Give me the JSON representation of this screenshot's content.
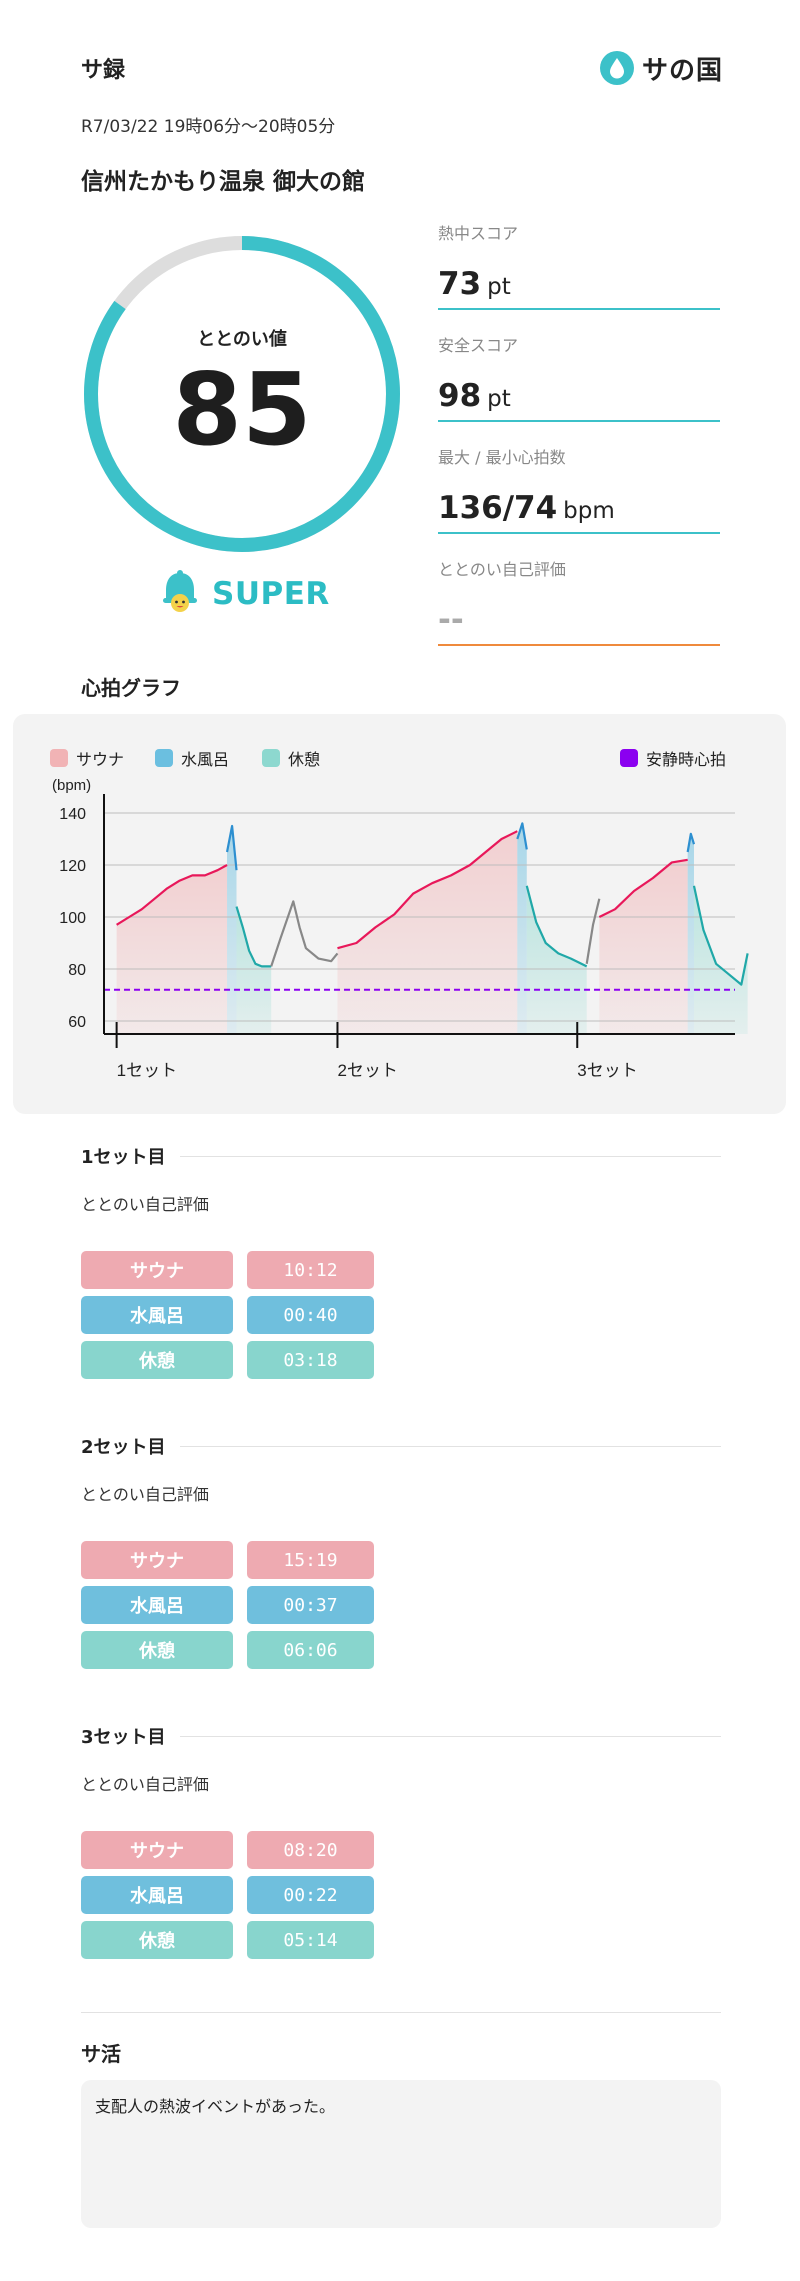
{
  "header": {
    "title": "サ録",
    "logo_text": "サの国",
    "logo_icon": "water-drop-icon",
    "datetime": "R7/03/22 19時06分〜20時05分",
    "facility": "信州たかもり温泉 御大の館"
  },
  "totonoi": {
    "label": "ととのい値",
    "value": "85",
    "max": 100,
    "level": "SUPER",
    "level_icon": "bell-mascot-icon",
    "ring_color": "#3cc1c9",
    "track_color": "#dddddd"
  },
  "scores": [
    {
      "label": "熱中スコア",
      "value": "73",
      "unit": "pt",
      "line_color": "#3cc1c9"
    },
    {
      "label": "安全スコア",
      "value": "98",
      "unit": "pt",
      "line_color": "#3cc1c9"
    },
    {
      "label": "最大 / 最小心拍数",
      "value": "136/74",
      "unit": "bpm",
      "line_color": "#3cc1c9"
    },
    {
      "label": "ととのい自己評価",
      "value": "--",
      "unit": "",
      "line_color": "#ef8a3c"
    }
  ],
  "chart_section_title": "心拍グラフ",
  "chart_data": {
    "type": "line",
    "ylabel": "(bpm)",
    "ylim": [
      55,
      145
    ],
    "yticks": [
      60,
      80,
      100,
      120,
      140
    ],
    "xlim": [
      0,
      100
    ],
    "x_ticks": [
      {
        "x": 2,
        "label": "1セット"
      },
      {
        "x": 37,
        "label": "2セット"
      },
      {
        "x": 75,
        "label": "3セット"
      }
    ],
    "legend": [
      {
        "name": "サウナ",
        "color": "#f1b3b5"
      },
      {
        "name": "水風呂",
        "color": "#6bbfe0"
      },
      {
        "name": "休憩",
        "color": "#8dd8cf"
      },
      {
        "name": "安静時心拍",
        "color": "#8b00f0"
      }
    ],
    "resting_hr": 72,
    "phases": [
      {
        "type": "サウナ",
        "start": 2,
        "end": 19.5
      },
      {
        "type": "水風呂",
        "start": 19.5,
        "end": 21
      },
      {
        "type": "休憩",
        "start": 21,
        "end": 26.5
      },
      {
        "type": "サウナ",
        "start": 37,
        "end": 65.5
      },
      {
        "type": "水風呂",
        "start": 65.5,
        "end": 67
      },
      {
        "type": "休憩",
        "start": 67,
        "end": 76.5
      },
      {
        "type": "サウナ",
        "start": 78.5,
        "end": 92.5
      },
      {
        "type": "水風呂",
        "start": 92.5,
        "end": 93.5
      },
      {
        "type": "休憩",
        "start": 93.5,
        "end": 102
      }
    ],
    "series": [
      {
        "segment": "サウナ",
        "color": "#e8185a",
        "x": [
          2,
          4,
          6,
          8,
          10,
          12,
          14,
          16,
          18,
          19.5
        ],
        "y": [
          97,
          100,
          103,
          107,
          111,
          114,
          116,
          116,
          118,
          120
        ]
      },
      {
        "segment": "水風呂",
        "color": "#2d8fd0",
        "x": [
          19.5,
          20.3,
          21
        ],
        "y": [
          125,
          135,
          118
        ]
      },
      {
        "segment": "休憩",
        "color": "#20a8a8",
        "x": [
          21,
          22,
          23,
          24,
          25,
          26.5
        ],
        "y": [
          104,
          96,
          87,
          82,
          81,
          81
        ]
      },
      {
        "segment": "移動",
        "color": "#888888",
        "x": [
          26.5,
          28,
          30,
          31,
          32,
          34,
          36,
          37
        ],
        "y": [
          81,
          92,
          106,
          96,
          88,
          84,
          83,
          86
        ]
      },
      {
        "segment": "サウナ",
        "color": "#e8185a",
        "x": [
          37,
          40,
          43,
          46,
          49,
          52,
          55,
          58,
          61,
          63,
          65.5
        ],
        "y": [
          88,
          90,
          96,
          101,
          109,
          113,
          116,
          120,
          126,
          130,
          133
        ]
      },
      {
        "segment": "水風呂",
        "color": "#2d8fd0",
        "x": [
          65.5,
          66.3,
          67
        ],
        "y": [
          130,
          136,
          126
        ]
      },
      {
        "segment": "休憩",
        "color": "#20a8a8",
        "x": [
          67,
          68.5,
          70,
          72,
          74,
          76.5
        ],
        "y": [
          112,
          98,
          90,
          86,
          84,
          81
        ]
      },
      {
        "segment": "移動",
        "color": "#888888",
        "x": [
          76.5,
          77.5,
          78.5
        ],
        "y": [
          82,
          97,
          107
        ]
      },
      {
        "segment": "サウナ",
        "color": "#e8185a",
        "x": [
          78.5,
          81,
          84,
          87,
          90,
          92.5
        ],
        "y": [
          100,
          103,
          110,
          115,
          121,
          122
        ]
      },
      {
        "segment": "水風呂",
        "color": "#2d8fd0",
        "x": [
          92.5,
          93,
          93.5
        ],
        "y": [
          125,
          132,
          128
        ]
      },
      {
        "segment": "休憩",
        "color": "#20a8a8",
        "x": [
          93.5,
          95,
          97,
          99,
          101,
          102
        ],
        "y": [
          112,
          95,
          82,
          78,
          74,
          86
        ]
      }
    ]
  },
  "phase_colors": {
    "sauna": "#eeaab1",
    "water": "#6fbfdd",
    "rest": "#88d5cd"
  },
  "sets": [
    {
      "title": "1セット目",
      "sub": "ととのい自己評価",
      "rows": [
        {
          "label": "サウナ",
          "time": "10:12"
        },
        {
          "label": "水風呂",
          "time": "00:40"
        },
        {
          "label": "休憩",
          "time": "03:18"
        }
      ]
    },
    {
      "title": "2セット目",
      "sub": "ととのい自己評価",
      "rows": [
        {
          "label": "サウナ",
          "time": "15:19"
        },
        {
          "label": "水風呂",
          "time": "00:37"
        },
        {
          "label": "休憩",
          "time": "06:06"
        }
      ]
    },
    {
      "title": "3セット目",
      "sub": "ととのい自己評価",
      "rows": [
        {
          "label": "サウナ",
          "time": "08:20"
        },
        {
          "label": "水風呂",
          "time": "00:22"
        },
        {
          "label": "休憩",
          "time": "05:14"
        }
      ]
    }
  ],
  "note": {
    "title": "サ活",
    "text": "支配人の熱波イベントがあった。"
  }
}
